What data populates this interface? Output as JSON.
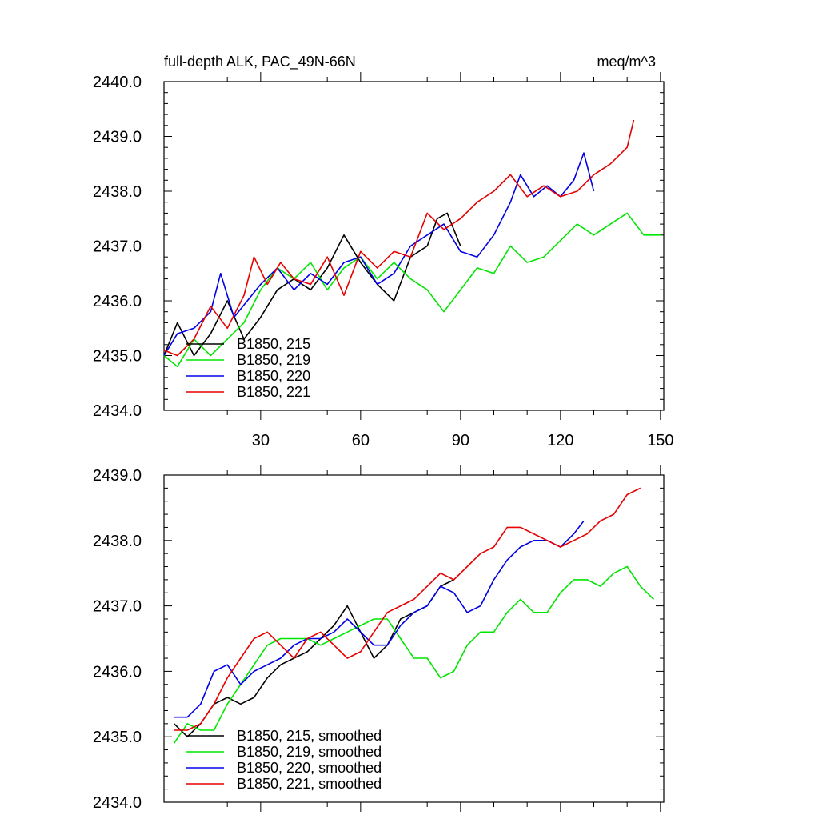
{
  "header": {
    "title": "full-depth ALK, PAC_49N-66N",
    "units": "meq/m^3"
  },
  "colors": {
    "B1850, 215": "#000000",
    "B1850, 219": "#00e600",
    "B1850, 220": "#0000e6",
    "B1850, 221": "#e60000"
  },
  "chart_data": [
    {
      "type": "line",
      "panel": "top",
      "title": "full-depth ALK, PAC_49N-66N",
      "units": "meq/m^3",
      "xlim": [
        1,
        151
      ],
      "ylim": [
        2434.0,
        2440.0
      ],
      "x_ticks": [
        30,
        60,
        90,
        120,
        150
      ],
      "x_tick_labels": [
        "30",
        "60",
        "90",
        "120",
        "150"
      ],
      "y_ticks": [
        2434.0,
        2435.0,
        2436.0,
        2437.0,
        2438.0,
        2439.0,
        2440.0
      ],
      "y_tick_labels": [
        "2434.0",
        "2435.0",
        "2436.0",
        "2437.0",
        "2438.0",
        "2439.0",
        "2440.0"
      ],
      "legend": "bottom-left",
      "series": [
        {
          "name": "B1850, 215",
          "color": "#000000",
          "x": [
            1,
            5,
            10,
            15,
            20,
            25,
            30,
            35,
            40,
            45,
            50,
            55,
            60,
            65,
            70,
            75,
            80,
            83,
            86,
            90
          ],
          "values": [
            2435.0,
            2435.6,
            2435.0,
            2435.4,
            2436.0,
            2435.3,
            2435.7,
            2436.2,
            2436.4,
            2436.2,
            2436.6,
            2437.2,
            2436.7,
            2436.3,
            2436.0,
            2436.8,
            2437.0,
            2437.5,
            2437.6,
            2437.0
          ]
        },
        {
          "name": "B1850, 219",
          "color": "#00e600",
          "x": [
            1,
            5,
            10,
            15,
            20,
            25,
            30,
            35,
            40,
            45,
            50,
            55,
            60,
            65,
            70,
            75,
            80,
            85,
            90,
            95,
            100,
            105,
            110,
            115,
            120,
            125,
            130,
            135,
            140,
            145,
            150
          ],
          "values": [
            2435.0,
            2434.8,
            2435.3,
            2435.0,
            2435.3,
            2435.6,
            2436.2,
            2436.6,
            2436.4,
            2436.7,
            2436.2,
            2436.6,
            2436.8,
            2436.4,
            2436.7,
            2436.4,
            2436.2,
            2435.8,
            2436.2,
            2436.6,
            2436.5,
            2437.0,
            2436.7,
            2436.8,
            2437.1,
            2437.4,
            2437.2,
            2437.4,
            2437.6,
            2437.2,
            2437.2
          ]
        },
        {
          "name": "B1850, 220",
          "color": "#0000e6",
          "x": [
            1,
            5,
            10,
            15,
            18,
            22,
            26,
            30,
            35,
            40,
            45,
            50,
            55,
            60,
            65,
            70,
            75,
            80,
            85,
            90,
            95,
            100,
            105,
            108,
            112,
            116,
            120,
            124,
            127,
            130
          ],
          "values": [
            2435.0,
            2435.4,
            2435.5,
            2435.8,
            2436.5,
            2435.7,
            2436.0,
            2436.3,
            2436.6,
            2436.2,
            2436.5,
            2436.3,
            2436.7,
            2436.8,
            2436.3,
            2436.5,
            2437.0,
            2437.2,
            2437.4,
            2436.9,
            2436.8,
            2437.2,
            2437.8,
            2438.3,
            2437.9,
            2438.1,
            2437.9,
            2438.2,
            2438.7,
            2438.0
          ]
        },
        {
          "name": "B1850, 221",
          "color": "#e60000",
          "x": [
            1,
            5,
            10,
            15,
            20,
            25,
            28,
            32,
            36,
            40,
            45,
            50,
            55,
            60,
            65,
            70,
            75,
            80,
            85,
            90,
            95,
            100,
            105,
            110,
            115,
            120,
            125,
            130,
            135,
            140,
            142
          ],
          "values": [
            2435.1,
            2435.0,
            2435.3,
            2435.9,
            2435.5,
            2436.1,
            2436.8,
            2436.3,
            2436.7,
            2436.4,
            2436.3,
            2436.8,
            2436.1,
            2436.9,
            2436.6,
            2436.9,
            2436.8,
            2437.6,
            2437.3,
            2437.5,
            2437.8,
            2438.0,
            2438.3,
            2437.9,
            2438.1,
            2437.9,
            2438.0,
            2438.3,
            2438.5,
            2438.8,
            2439.3
          ]
        }
      ]
    },
    {
      "type": "line",
      "panel": "bottom",
      "xlim": [
        1,
        151
      ],
      "ylim": [
        2434.0,
        2439.0
      ],
      "x_ticks": [
        30,
        60,
        90,
        120,
        150
      ],
      "y_ticks": [
        2434.0,
        2435.0,
        2436.0,
        2437.0,
        2438.0,
        2439.0
      ],
      "y_tick_labels": [
        "2434.0",
        "2435.0",
        "2436.0",
        "2437.0",
        "2438.0",
        "2439.0"
      ],
      "legend": "bottom-left",
      "series": [
        {
          "name": "B1850, 215, smoothed",
          "color": "#000000",
          "x": [
            4,
            8,
            12,
            16,
            20,
            24,
            28,
            32,
            36,
            40,
            44,
            48,
            52,
            56,
            60,
            64,
            68,
            72,
            76,
            80,
            84,
            88
          ],
          "values": [
            2435.2,
            2435.0,
            2435.2,
            2435.5,
            2435.6,
            2435.5,
            2435.6,
            2435.9,
            2436.1,
            2436.2,
            2436.3,
            2436.5,
            2436.7,
            2437.0,
            2436.6,
            2436.2,
            2436.4,
            2436.8,
            2436.9,
            2437.0,
            2437.3,
            2437.4
          ]
        },
        {
          "name": "B1850, 219, smoothed",
          "color": "#00e600",
          "x": [
            4,
            8,
            12,
            16,
            20,
            24,
            28,
            32,
            36,
            40,
            44,
            48,
            52,
            56,
            60,
            64,
            68,
            72,
            76,
            80,
            84,
            88,
            92,
            96,
            100,
            104,
            108,
            112,
            116,
            120,
            124,
            128,
            132,
            136,
            140,
            144,
            148
          ],
          "values": [
            2434.9,
            2435.2,
            2435.1,
            2435.1,
            2435.5,
            2435.8,
            2436.1,
            2436.4,
            2436.5,
            2436.5,
            2436.5,
            2436.4,
            2436.5,
            2436.6,
            2436.7,
            2436.8,
            2436.8,
            2436.5,
            2436.2,
            2436.2,
            2435.9,
            2436.0,
            2436.4,
            2436.6,
            2436.6,
            2436.9,
            2437.1,
            2436.9,
            2436.9,
            2437.2,
            2437.4,
            2437.4,
            2437.3,
            2437.5,
            2437.6,
            2437.3,
            2437.1
          ]
        },
        {
          "name": "B1850, 220, smoothed",
          "color": "#0000e6",
          "x": [
            4,
            8,
            12,
            16,
            20,
            24,
            28,
            32,
            36,
            40,
            44,
            48,
            52,
            56,
            60,
            64,
            68,
            72,
            76,
            80,
            84,
            88,
            92,
            96,
            100,
            104,
            108,
            112,
            116,
            120,
            124,
            127
          ],
          "values": [
            2435.3,
            2435.3,
            2435.5,
            2436.0,
            2436.1,
            2435.8,
            2436.0,
            2436.1,
            2436.2,
            2436.4,
            2436.5,
            2436.5,
            2436.6,
            2436.8,
            2436.6,
            2436.4,
            2436.4,
            2436.7,
            2436.9,
            2437.0,
            2437.3,
            2437.2,
            2436.9,
            2437.0,
            2437.4,
            2437.7,
            2437.9,
            2438.0,
            2438.0,
            2437.9,
            2438.1,
            2438.3
          ]
        },
        {
          "name": "B1850, 221, smoothed",
          "color": "#e60000",
          "x": [
            4,
            8,
            12,
            16,
            20,
            24,
            28,
            32,
            36,
            40,
            44,
            48,
            52,
            56,
            60,
            64,
            68,
            72,
            76,
            80,
            84,
            88,
            92,
            96,
            100,
            104,
            108,
            112,
            116,
            120,
            124,
            128,
            132,
            136,
            140,
            144
          ],
          "values": [
            2435.1,
            2435.1,
            2435.2,
            2435.5,
            2435.9,
            2436.2,
            2436.5,
            2436.6,
            2436.4,
            2436.2,
            2436.5,
            2436.6,
            2436.4,
            2436.2,
            2436.3,
            2436.6,
            2436.9,
            2437.0,
            2437.1,
            2437.3,
            2437.5,
            2437.4,
            2437.6,
            2437.8,
            2437.9,
            2438.2,
            2438.2,
            2438.1,
            2438.0,
            2437.9,
            2438.0,
            2438.1,
            2438.3,
            2438.4,
            2438.7,
            2438.8
          ]
        }
      ]
    }
  ]
}
